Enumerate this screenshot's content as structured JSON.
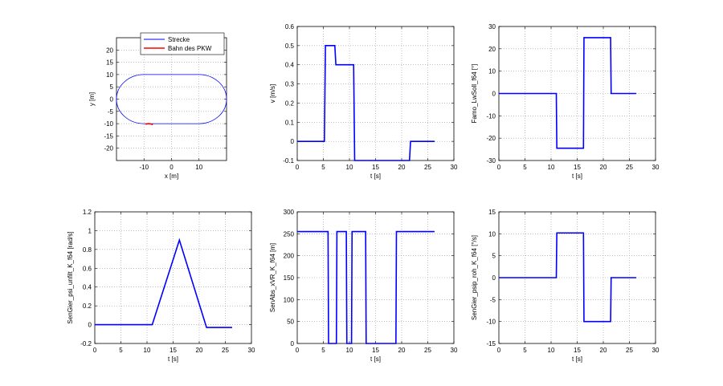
{
  "chart_data": [
    {
      "type": "line",
      "xlabel": "x [m]",
      "ylabel": "y [m]",
      "xlim": [
        -20,
        20
      ],
      "ylim": [
        -25,
        25
      ],
      "xticks": [
        -10,
        0,
        10
      ],
      "yticks": [
        -20,
        -15,
        -10,
        -5,
        0,
        5,
        10,
        15,
        20
      ],
      "grid": true,
      "legend": {
        "placement": "top-right",
        "entries": [
          "Strecke",
          "Bahn des PKW"
        ]
      },
      "series": [
        {
          "name": "Strecke",
          "color": "#0000ff",
          "shape": "stadium",
          "straight_x": [
            -10,
            10
          ],
          "y_top": 10,
          "y_bottom": -10,
          "radius": 10
        },
        {
          "name": "Bahn des PKW",
          "color": "#ff0000",
          "x": [
            -9.5,
            -8.5,
            -7.5,
            -6.8
          ],
          "y": [
            -10.2,
            -10.0,
            -10.1,
            -10.4
          ]
        }
      ]
    },
    {
      "type": "line",
      "xlabel": "t [s]",
      "ylabel": "v [m/s]",
      "xlim": [
        0,
        30
      ],
      "ylim": [
        -0.1,
        0.6
      ],
      "xticks": [
        0,
        5,
        10,
        15,
        20,
        25,
        30
      ],
      "yticks": [
        -0.1,
        0,
        0.1,
        0.2,
        0.3,
        0.4,
        0.5,
        0.6
      ],
      "grid": true,
      "series": [
        {
          "color": "#0000ff",
          "x": [
            0,
            5.2,
            5.4,
            7.2,
            7.4,
            10.8,
            11.0,
            21.5,
            21.7,
            26.3
          ],
          "y": [
            0,
            0,
            0.5,
            0.5,
            0.4,
            0.4,
            -0.1,
            -0.1,
            0,
            0
          ]
        }
      ]
    },
    {
      "type": "line",
      "xlabel": "t [s]",
      "ylabel": "Famo_LwSoll_f64 [°]",
      "xlim": [
        0,
        30
      ],
      "ylim": [
        -30,
        30
      ],
      "xticks": [
        0,
        5,
        10,
        15,
        20,
        25,
        30
      ],
      "yticks": [
        -30,
        -20,
        -10,
        0,
        10,
        20,
        30
      ],
      "grid": true,
      "series": [
        {
          "color": "#0000ff",
          "x": [
            0,
            11.0,
            11.1,
            16.2,
            16.3,
            21.4,
            21.5,
            26.3
          ],
          "y": [
            0,
            0,
            -24.5,
            -24.5,
            25,
            25,
            0,
            0
          ]
        }
      ]
    },
    {
      "type": "line",
      "xlabel": "t [s]",
      "ylabel": "SenGier_psi_unfilt_K_f64 [rad/s]",
      "xlim": [
        0,
        30
      ],
      "ylim": [
        -0.2,
        1.2
      ],
      "xticks": [
        0,
        5,
        10,
        15,
        20,
        25,
        30
      ],
      "yticks": [
        -0.2,
        0,
        0.2,
        0.4,
        0.6,
        0.8,
        1,
        1.2
      ],
      "grid": true,
      "series": [
        {
          "color": "#0000ff",
          "x": [
            0,
            11.0,
            16.2,
            21.4,
            26.3
          ],
          "y": [
            0,
            0,
            0.9,
            -0.03,
            -0.03
          ]
        }
      ]
    },
    {
      "type": "line",
      "xlabel": "t [s]",
      "ylabel": "SenAbs_xVR_K_f64 [m]",
      "xlim": [
        0,
        30
      ],
      "ylim": [
        0,
        300
      ],
      "xticks": [
        0,
        5,
        10,
        15,
        20,
        25,
        30
      ],
      "yticks": [
        0,
        50,
        100,
        150,
        200,
        250,
        300
      ],
      "grid": true,
      "series": [
        {
          "color": "#0000ff",
          "x": [
            0,
            5.9,
            6.0,
            7.5,
            7.6,
            9.4,
            9.5,
            10.4,
            10.5,
            13.1,
            13.2,
            18.9,
            19.0,
            26.3
          ],
          "y": [
            255,
            255,
            0,
            0,
            255,
            255,
            0,
            0,
            255,
            255,
            0,
            0,
            255,
            255
          ]
        }
      ]
    },
    {
      "type": "line",
      "xlabel": "t [s]",
      "ylabel": "SenGier_psip_roh_K_f64 [°/s]",
      "xlim": [
        0,
        30
      ],
      "ylim": [
        -15,
        15
      ],
      "xticks": [
        0,
        5,
        10,
        15,
        20,
        25,
        30
      ],
      "yticks": [
        -15,
        -10,
        -5,
        0,
        5,
        10,
        15
      ],
      "grid": true,
      "series": [
        {
          "color": "#0000ff",
          "x": [
            0,
            11.0,
            11.1,
            16.2,
            16.3,
            21.4,
            21.5,
            26.3
          ],
          "y": [
            0,
            0,
            10.2,
            10.2,
            -10,
            -10,
            0,
            0
          ]
        }
      ]
    }
  ]
}
